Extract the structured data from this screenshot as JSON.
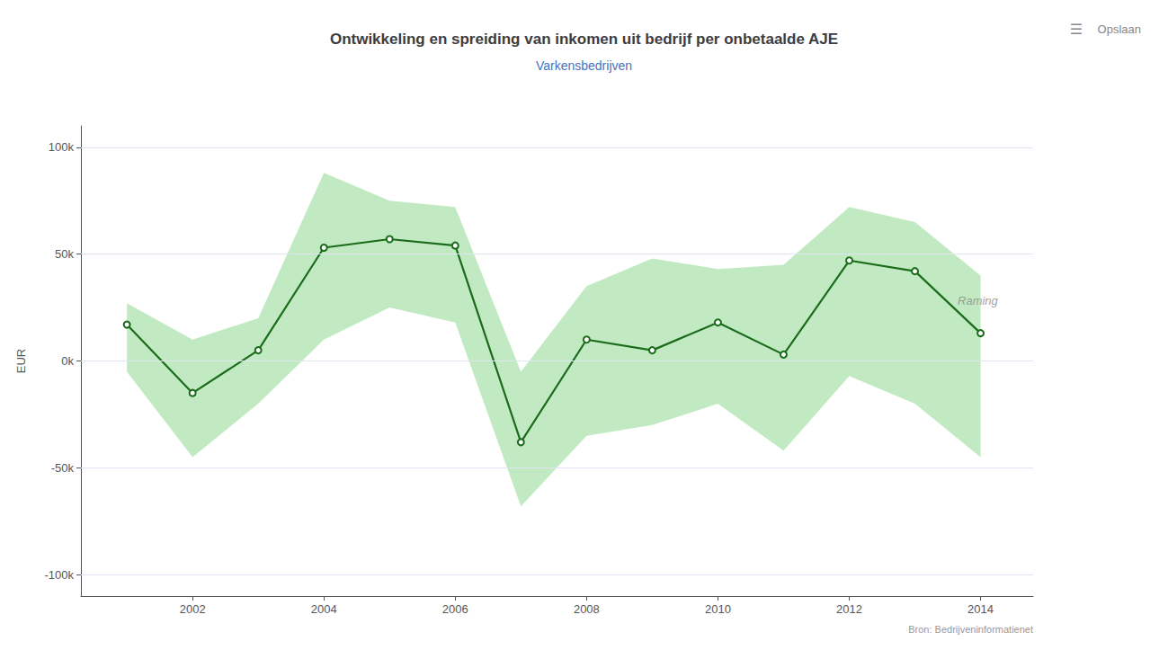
{
  "chart_data": {
    "type": "line",
    "title": "Ontwikkeling en spreiding van inkomen uit bedrijf per onbetaalde AJE",
    "subtitle": "Varkensbedrijven",
    "ylabel": "EUR",
    "source": "Bron: Bedrijveninformatienet",
    "menu": [
      "☰",
      "Opslaan"
    ],
    "annotations": [
      {
        "text": "Raming",
        "x": 2013.65,
        "y": 28000
      }
    ],
    "x": [
      2001,
      2002,
      2003,
      2004,
      2005,
      2006,
      2007,
      2008,
      2009,
      2010,
      2011,
      2012,
      2013,
      2014
    ],
    "values": [
      17000,
      -15000,
      5000,
      53000,
      57000,
      54000,
      -38000,
      10000,
      5000,
      18000,
      3000,
      47000,
      42000,
      13000
    ],
    "color": "#1a6b1a",
    "marker": "circle",
    "band_upper": [
      27000,
      10000,
      20000,
      88000,
      75000,
      72000,
      -5000,
      35000,
      48000,
      43000,
      45000,
      72000,
      65000,
      40000
    ],
    "band_lower": [
      -5000,
      -45000,
      -20000,
      10000,
      25000,
      18000,
      -68000,
      -35000,
      -30000,
      -20000,
      -42000,
      -7000,
      -20000,
      -45000
    ],
    "band_color": "#90d890",
    "xlim": [
      2000.3,
      2014.8
    ],
    "xticks": [
      2002,
      2004,
      2006,
      2008,
      2010,
      2012,
      2014
    ],
    "ylim": [
      -110000,
      110000
    ],
    "yticks": [
      {
        "value": -100000,
        "label": "-100k"
      },
      {
        "value": -50000,
        "label": "-50k"
      },
      {
        "value": 0,
        "label": "0k"
      },
      {
        "value": 50000,
        "label": "50k"
      },
      {
        "value": 100000,
        "label": "100k"
      }
    ],
    "grid": true
  }
}
